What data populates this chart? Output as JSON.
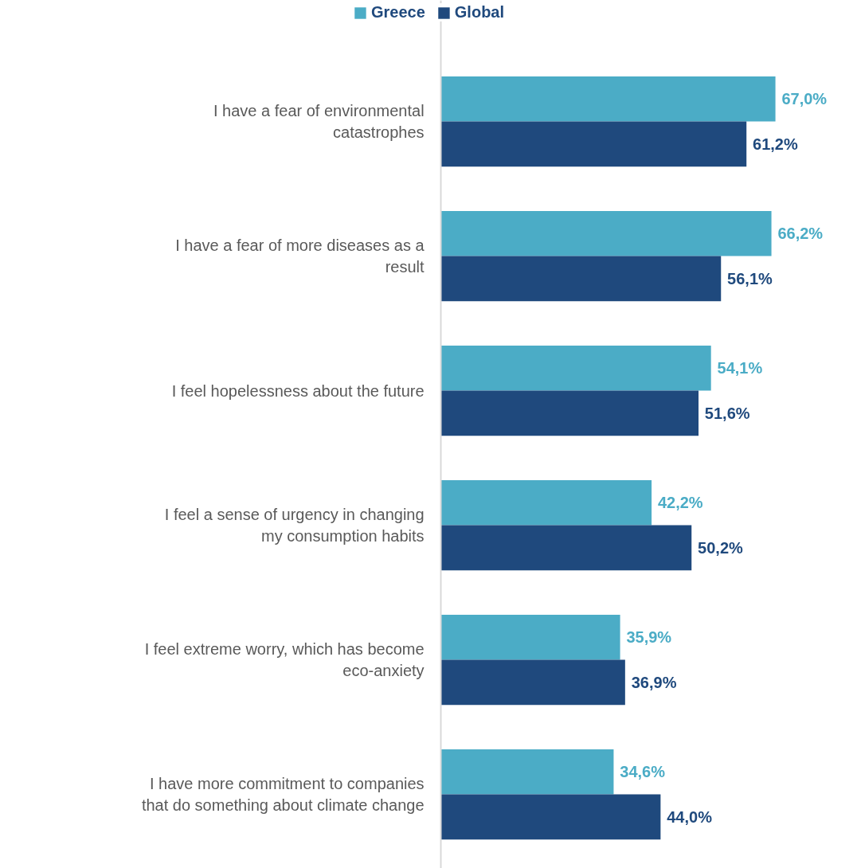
{
  "chart_data": {
    "type": "bar",
    "orientation": "horizontal",
    "categories": [
      "I have a fear of environmental catastrophes",
      "I have a fear of more diseases as a result",
      "I feel hopelessness about the future",
      "I feel a sense of urgency in changing my consumption habits",
      "I feel extreme worry, which has become eco-anxiety",
      "I have more commitment to companies that do something about climate change"
    ],
    "series": [
      {
        "name": "Greece",
        "color": "#4bacc6",
        "values": [
          67.0,
          66.2,
          54.1,
          42.2,
          35.9,
          34.6
        ],
        "value_labels": [
          "67,0%",
          "66,2%",
          "54,1%",
          "42,2%",
          "35,9%",
          "34,6%"
        ]
      },
      {
        "name": "Global",
        "color": "#1f497d",
        "values": [
          61.2,
          56.1,
          51.6,
          50.2,
          36.9,
          44.0
        ],
        "value_labels": [
          "61,2%",
          "56,1%",
          "51,6%",
          "50,2%",
          "36,9%",
          "44,0%"
        ]
      }
    ],
    "legend": "top",
    "grid": false
  }
}
